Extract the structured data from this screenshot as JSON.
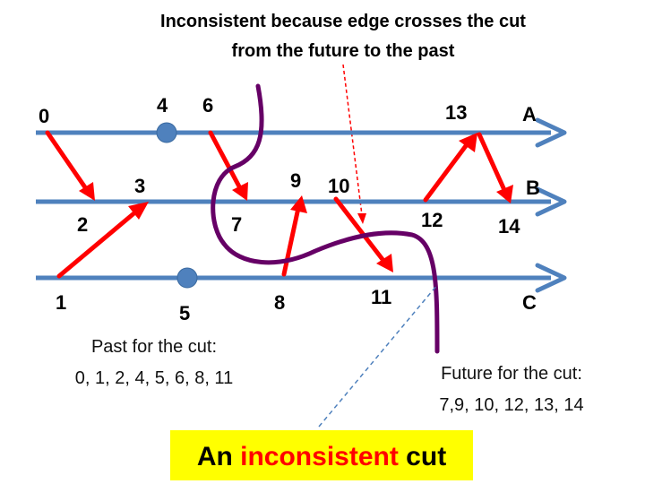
{
  "title": {
    "line1": "Inconsistent because edge crosses the cut",
    "line2": "from the future to the past"
  },
  "processes": [
    "A",
    "B",
    "C"
  ],
  "events": [
    {
      "id": "e0",
      "label": "0"
    },
    {
      "id": "e1",
      "label": "1"
    },
    {
      "id": "e2",
      "label": "2"
    },
    {
      "id": "e3",
      "label": "3"
    },
    {
      "id": "e4",
      "label": "4"
    },
    {
      "id": "e5",
      "label": "5"
    },
    {
      "id": "e6",
      "label": "6"
    },
    {
      "id": "e7",
      "label": "7"
    },
    {
      "id": "e8",
      "label": "8"
    },
    {
      "id": "e9",
      "label": "9"
    },
    {
      "id": "e10",
      "label": "10"
    },
    {
      "id": "e11",
      "label": "11"
    },
    {
      "id": "e12",
      "label": "12"
    },
    {
      "id": "e13",
      "label": "13"
    },
    {
      "id": "e14",
      "label": "14"
    }
  ],
  "messages": [
    {
      "from": "0",
      "to": "2"
    },
    {
      "from": "1",
      "to": "3"
    },
    {
      "from": "6",
      "to": "7"
    },
    {
      "from": "8",
      "to": "9"
    },
    {
      "from": "10",
      "to": "11"
    },
    {
      "from": "12",
      "to": "13"
    },
    {
      "from": "13",
      "to": "14"
    }
  ],
  "past": {
    "heading": "Past for the cut:",
    "events": "0, 1, 2, 4, 5, 6, 8, 11"
  },
  "future": {
    "heading": "Future for the cut:",
    "events": "7,9, 10, 12, 13, 14"
  },
  "caption": {
    "part1": "An ",
    "highlight": "inconsistent",
    "part2": " cut"
  },
  "colors": {
    "timeline": "#4f81bd",
    "message": "#ff0000",
    "cut": "#660066",
    "event_dot": "#4f81bd",
    "caption_bg": "#ffff00",
    "caption_highlight": "#ff0000",
    "pointer": "#ff0000",
    "dashed_link": "#4f81bd"
  }
}
